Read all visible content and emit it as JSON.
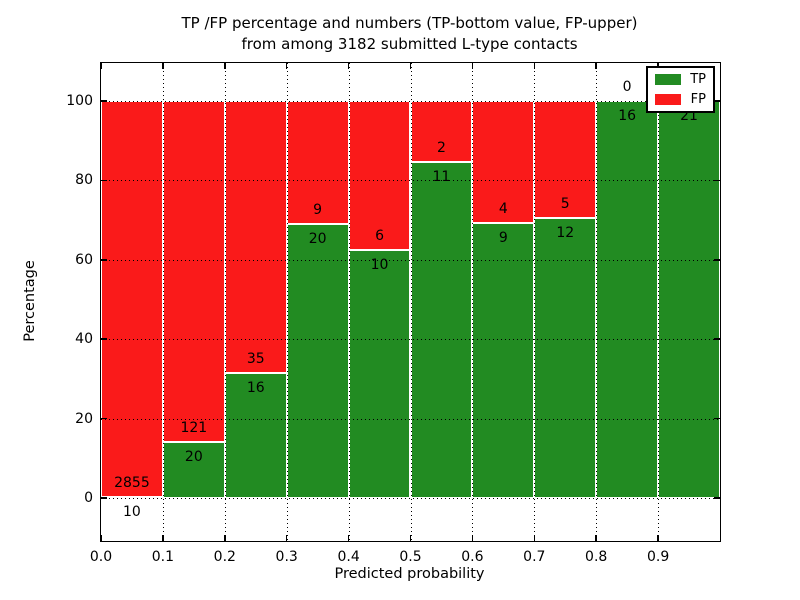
{
  "title": {
    "line1": "TP /FP percentage and numbers (TP-bottom value, FP-upper)",
    "line2": "from among 3182 submitted L-type contacts"
  },
  "axes": {
    "xlabel": "Predicted probability",
    "ylabel": "Percentage",
    "x_ticks": [
      "0.0",
      "0.1",
      "0.2",
      "0.3",
      "0.4",
      "0.5",
      "0.6",
      "0.7",
      "0.8",
      "0.9"
    ],
    "y_ticks": [
      "0",
      "20",
      "40",
      "60",
      "80",
      "100"
    ]
  },
  "legend": {
    "position": "upper right",
    "entries": [
      {
        "label": "TP",
        "color": "#228b22"
      },
      {
        "label": "FP",
        "color": "#fa1a1a"
      }
    ]
  },
  "colors": {
    "tp_green": "#228b22",
    "fp_red": "#fa1a1a",
    "background": "#ffffff",
    "grid": "#000000"
  },
  "chart_data": {
    "type": "bar",
    "stacked": true,
    "normalized_to_percent": 100,
    "title": "TP /FP percentage and numbers (TP-bottom value, FP-upper) from among 3182 submitted L-type contacts",
    "xlabel": "Predicted probability",
    "ylabel": "Percentage",
    "total_contacts": 3182,
    "bin_width": 0.1,
    "bin_starts": [
      0.0,
      0.1,
      0.2,
      0.3,
      0.4,
      0.5,
      0.6,
      0.7,
      0.8,
      0.9
    ],
    "xlim": [
      0.0,
      1.0
    ],
    "ylim": [
      -11,
      110
    ],
    "grid": "dotted",
    "legend_position": "upper right",
    "series": [
      {
        "name": "TP",
        "color": "#228b22",
        "counts": [
          10,
          20,
          16,
          20,
          10,
          11,
          9,
          12,
          16,
          21
        ]
      },
      {
        "name": "FP",
        "color": "#fa1a1a",
        "counts": [
          2855,
          121,
          35,
          9,
          6,
          2,
          4,
          5,
          0,
          0
        ]
      }
    ],
    "tp_percent": [
      0.35,
      14.18,
      31.37,
      68.97,
      62.5,
      84.62,
      69.23,
      70.59,
      100.0,
      100.0
    ],
    "label_note": "FP count printed above each stack boundary, TP count below; FP label of last bin hidden behind legend"
  }
}
